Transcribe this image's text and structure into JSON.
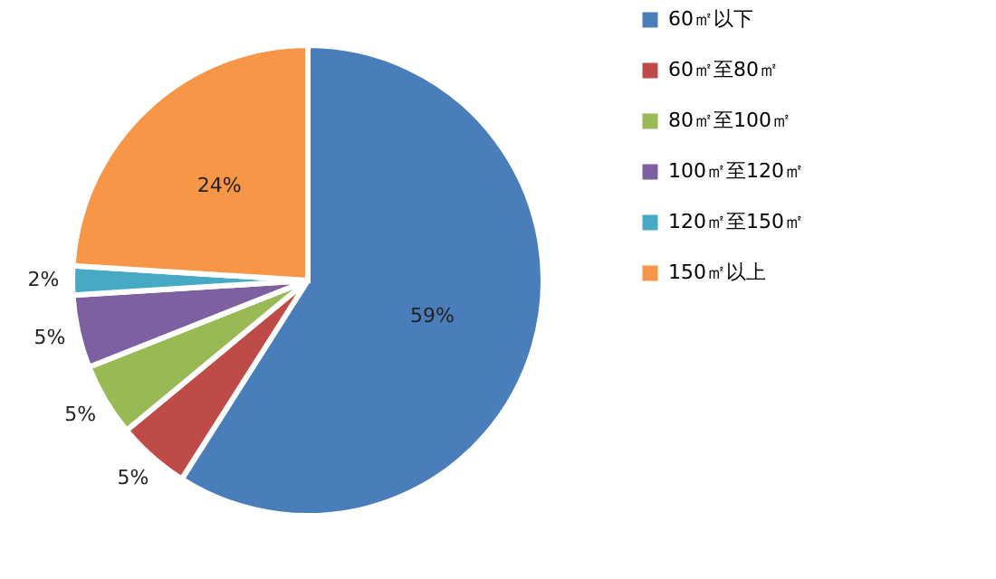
{
  "chart_data": {
    "type": "pie",
    "categories": [
      "60㎡以下",
      "60㎡至80㎡",
      "80㎡至100㎡",
      "100㎡至120㎡",
      "120㎡至150㎡",
      "150㎡以上"
    ],
    "values": [
      59,
      5,
      5,
      5,
      2,
      24
    ],
    "colors": [
      "#4a7ebb",
      "#be4b48",
      "#98b954",
      "#7d60a0",
      "#46aac5",
      "#f79646"
    ],
    "value_labels": [
      "59%",
      "5%",
      "5%",
      "5%",
      "2%",
      "24%"
    ],
    "legend": "right"
  }
}
